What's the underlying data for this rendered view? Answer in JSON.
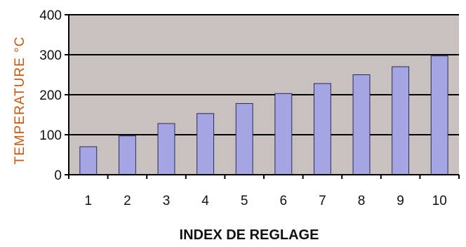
{
  "chart_data": {
    "type": "bar",
    "title": "",
    "xlabel": "INDEX DE REGLAGE",
    "ylabel": "TEMPERATURE °C",
    "categories": [
      "1",
      "2",
      "3",
      "4",
      "5",
      "6",
      "7",
      "8",
      "9",
      "10"
    ],
    "series": [
      {
        "values": [
          70,
          97,
          128,
          153,
          178,
          203,
          228,
          250,
          270,
          297
        ]
      }
    ],
    "ylim": [
      0,
      400
    ],
    "yticks": [
      "0",
      "100",
      "200",
      "300",
      "400"
    ],
    "grid": true,
    "legend": "none",
    "colors": {
      "bar": "#a5a5e3",
      "bar_border": "#2a2a55",
      "plot_background": "#c9c0c0",
      "gridline": "#000000",
      "ylabel": "#c45a16"
    }
  }
}
